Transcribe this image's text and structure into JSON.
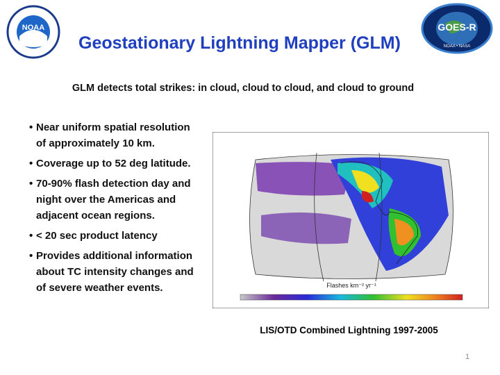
{
  "header": {
    "title": "Geostationary Lightning Mapper (GLM)",
    "subtitle": "GLM detects total strikes: in cloud, cloud to cloud, and cloud to ground"
  },
  "logos": {
    "left": "NOAA",
    "right": "GOES-R",
    "right_sub": "NOAA • NASA"
  },
  "bullets": [
    "Near uniform spatial resolution of approximately 10 km.",
    "Coverage up to 52 deg latitude.",
    "70-90% flash detection day and night over the Americas and adjacent ocean regions.",
    "< 20 sec product latency",
    "Provides additional information about TC intensity changes and of severe weather events."
  ],
  "figure": {
    "legend": "Flashes km⁻² yr⁻¹",
    "caption": "LIS/OTD Combined Lightning 1997-2005"
  },
  "footer": {
    "page_number": "1"
  }
}
